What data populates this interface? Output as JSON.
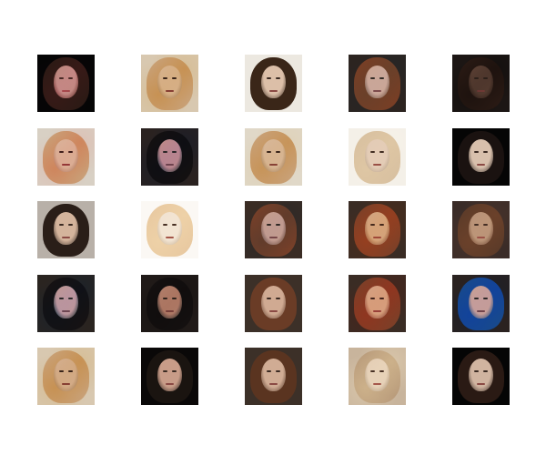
{
  "grid": {
    "rows": 5,
    "columns": 5,
    "tiles": [
      {
        "bg": "#050505",
        "hair": "#2a1a14",
        "face": "#b08a76",
        "noise": "rgba(200,120,160,0.55)"
      },
      {
        "bg": "#d8c8b0",
        "hair": "#c9a27a",
        "face": "#d7b89c",
        "noise": "rgba(120,90,60,0.6)"
      },
      {
        "bg": "#ece8e0",
        "hair": "#3a2618",
        "face": "#dcbfa8",
        "noise": "rgba(0,0,0,0)"
      },
      {
        "bg": "#2c2420",
        "hair": "#7a3e24",
        "face": "#cfa48a",
        "noise": "rgba(60,140,200,0.25)"
      },
      {
        "bg": "#1c1614",
        "hair": "#2a1a14",
        "face": "#6a4a3c",
        "noise": "rgba(0,0,0,0.3)"
      },
      {
        "bg": "#d8d0c4",
        "hair": "#c9a27a",
        "face": "#d8bca4",
        "noise": "rgba(160,40,60,0.45)"
      },
      {
        "bg": "#2a2220",
        "hair": "#141010",
        "face": "#c6907c",
        "noise": "rgba(40,90,180,0.45)"
      },
      {
        "bg": "#e0d8c8",
        "hair": "#c9a27a",
        "face": "#d8bca4",
        "noise": "rgba(120,90,60,0.5)"
      },
      {
        "bg": "#f4f0e8",
        "hair": "#d8c0a0",
        "face": "#e0c8b4",
        "noise": "rgba(180,160,140,0.4)"
      },
      {
        "bg": "#050505",
        "hair": "#1a1210",
        "face": "#d8c0ac",
        "noise": "rgba(0,0,0,0)"
      },
      {
        "bg": "#b8b0a8",
        "hair": "#2a1e18",
        "face": "#d4b49c",
        "noise": "rgba(0,0,0,0)"
      },
      {
        "bg": "#fbf8f4",
        "hair": "#e8c8a0",
        "face": "#efe0d0",
        "noise": "rgba(240,200,160,0.3)"
      },
      {
        "bg": "#3a2c24",
        "hair": "#7a4028",
        "face": "#caa088",
        "noise": "rgba(40,100,160,0.3)"
      },
      {
        "bg": "#3a2c24",
        "hair": "#7a4028",
        "face": "#cca48c",
        "noise": "rgba(220,120,40,0.3)"
      },
      {
        "bg": "#3a2c28",
        "hair": "#5a3a28",
        "face": "#b08a74",
        "noise": "rgba(180,160,140,0.45)"
      },
      {
        "bg": "#2a2420",
        "hair": "#161212",
        "face": "#c89a84",
        "noise": "rgba(40,110,200,0.45)"
      },
      {
        "bg": "#201a18",
        "hair": "#141010",
        "face": "#b88a76",
        "noise": "rgba(0,0,0,0.2)"
      },
      {
        "bg": "#3c3028",
        "hair": "#6a3c26",
        "face": "#d0aa92",
        "noise": "rgba(0,0,0,0)"
      },
      {
        "bg": "#3a2c24",
        "hair": "#7a4028",
        "face": "#d0a88e",
        "noise": "rgba(200,60,40,0.3)"
      },
      {
        "bg": "#2a2220",
        "hair": "#184a8a",
        "face": "#cfa48c",
        "noise": "rgba(30,90,180,0.35)"
      },
      {
        "bg": "#d8c8b0",
        "hair": "#c9a27a",
        "face": "#d4b49c",
        "noise": "rgba(120,90,60,0.6)"
      },
      {
        "bg": "#0a0808",
        "hair": "#1a1410",
        "face": "#c89c88",
        "noise": "rgba(0,0,0,0)"
      },
      {
        "bg": "#3c3028",
        "hair": "#5a3420",
        "face": "#d0ac94",
        "noise": "rgba(0,0,0,0)"
      },
      {
        "bg": "#c8b49c",
        "hair": "#b89a7a",
        "face": "#e0c8b0",
        "noise": "rgba(220,200,170,0.4)"
      },
      {
        "bg": "#050505",
        "hair": "#2a1a14",
        "face": "#d0b4a0",
        "noise": "rgba(0,0,0,0)"
      }
    ]
  }
}
